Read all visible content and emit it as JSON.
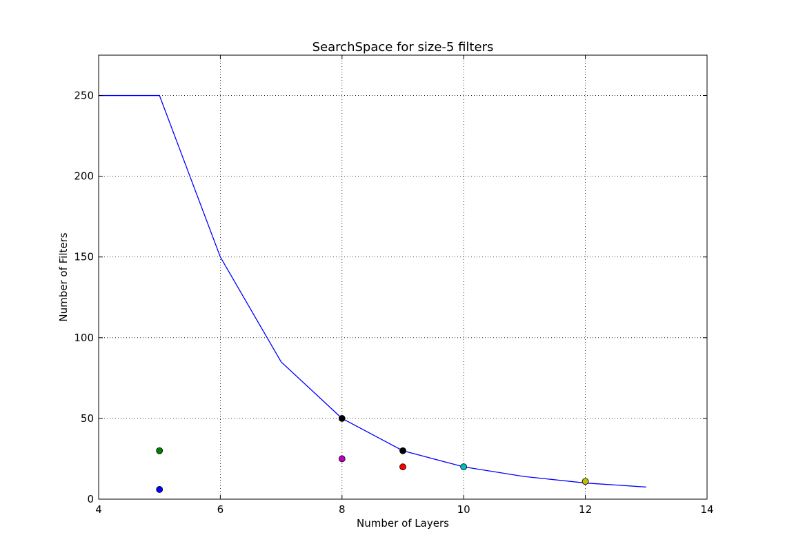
{
  "chart_data": {
    "type": "line",
    "title": "SearchSpace for size-5 filters",
    "xlabel": "Number of Layers",
    "ylabel": "Number of Filters",
    "xlim": [
      4,
      14
    ],
    "ylim": [
      0,
      275
    ],
    "xticks": [
      4,
      6,
      8,
      10,
      12,
      14
    ],
    "yticks": [
      0,
      50,
      100,
      150,
      200,
      250
    ],
    "grid": true,
    "line_series": {
      "color": "#0000ff",
      "x": [
        4,
        5,
        6,
        7,
        8,
        9,
        10,
        11,
        12,
        13
      ],
      "y": [
        250,
        250,
        150,
        85,
        50,
        30,
        20,
        14,
        10,
        7.5
      ]
    },
    "points": [
      {
        "x": 5,
        "y": 6,
        "color": "#0000ff"
      },
      {
        "x": 5,
        "y": 30,
        "color": "#008000"
      },
      {
        "x": 8,
        "y": 50,
        "color": "#000000"
      },
      {
        "x": 8,
        "y": 25,
        "color": "#bf00bf"
      },
      {
        "x": 9,
        "y": 30,
        "color": "#000000"
      },
      {
        "x": 9,
        "y": 20,
        "color": "#ff0000"
      },
      {
        "x": 10,
        "y": 20,
        "color": "#00bfbf"
      },
      {
        "x": 12,
        "y": 11,
        "color": "#bfbf00"
      }
    ]
  }
}
